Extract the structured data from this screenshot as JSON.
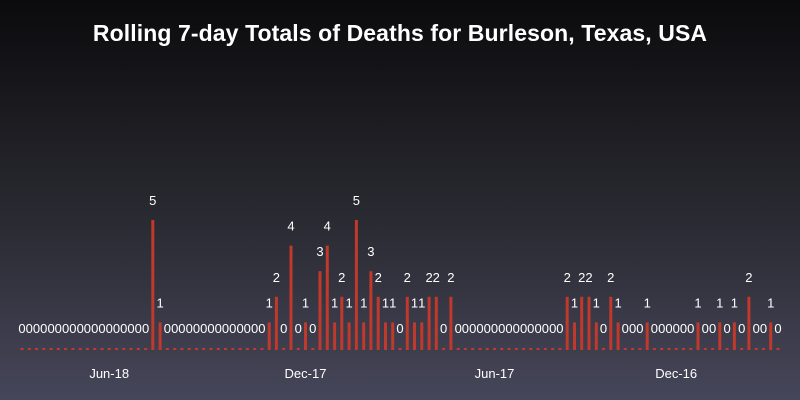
{
  "chart_data": {
    "type": "bar",
    "title": "Rolling 7-day Totals of Deaths for Burleson, Texas, USA",
    "xlabel": "",
    "ylabel": "",
    "ylim": [
      0,
      6
    ],
    "grid": false,
    "legend": "none",
    "x_tick_labels": [
      "Jun-18",
      "Dec-17",
      "Jun-17",
      "Dec-16"
    ],
    "x_tick_positions": [
      12,
      39,
      65,
      90
    ],
    "bar_color": "#c0392b",
    "label_color": "#ffffff",
    "values": [
      0,
      0,
      0,
      0,
      0,
      0,
      0,
      0,
      0,
      0,
      0,
      0,
      0,
      0,
      0,
      0,
      0,
      0,
      5,
      1,
      0,
      0,
      0,
      0,
      0,
      0,
      0,
      0,
      0,
      0,
      0,
      0,
      0,
      0,
      1,
      2,
      0,
      4,
      0,
      1,
      0,
      3,
      4,
      1,
      2,
      1,
      5,
      1,
      3,
      2,
      1,
      1,
      0,
      2,
      1,
      1,
      2,
      2,
      0,
      2,
      0,
      0,
      0,
      0,
      0,
      0,
      0,
      0,
      0,
      0,
      0,
      0,
      0,
      0,
      0,
      2,
      1,
      2,
      2,
      1,
      0,
      2,
      1,
      0,
      0,
      0,
      1,
      0,
      0,
      0,
      0,
      0,
      0,
      1,
      0,
      0,
      1,
      0,
      1,
      0,
      2,
      0,
      0,
      1,
      0
    ]
  }
}
